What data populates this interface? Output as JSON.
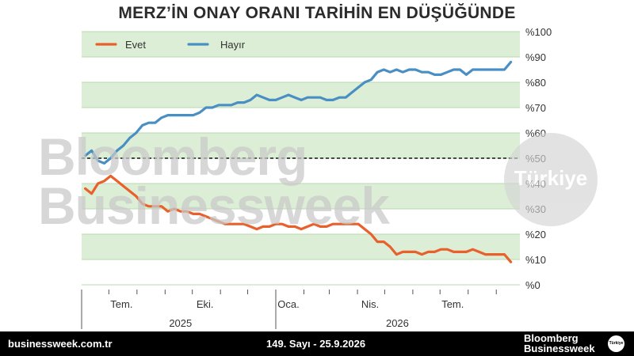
{
  "chart_data": {
    "type": "line",
    "title": "MERZ’İN ONAY ORANI TARİHİN EN DÜŞÜĞÜNDE",
    "ylim": [
      0,
      100
    ],
    "y_ticks": [
      "%0",
      "%10",
      "%20",
      "%30",
      "%40",
      "%50",
      "%60",
      "%70",
      "%80",
      "%90",
      "%100"
    ],
    "x_tick_labels": [
      "Tem.",
      "Eki.",
      "Oca.",
      "Nis.",
      "Tem."
    ],
    "x_years": [
      "2025",
      "2026"
    ],
    "reference_line": 50,
    "legend_position": "top-left",
    "grid": "alternating horizontal bands",
    "series": [
      {
        "name": "Evet",
        "color": "#e8602c",
        "points": [
          [
            "2025-06-05",
            38
          ],
          [
            "2025-06-12",
            36
          ],
          [
            "2025-06-19",
            40
          ],
          [
            "2025-06-26",
            41
          ],
          [
            "2025-07-03",
            43
          ],
          [
            "2025-07-10",
            41
          ],
          [
            "2025-07-17",
            39
          ],
          [
            "2025-07-24",
            37
          ],
          [
            "2025-07-31",
            35
          ],
          [
            "2025-08-07",
            32
          ],
          [
            "2025-08-14",
            31
          ],
          [
            "2025-08-21",
            31
          ],
          [
            "2025-08-28",
            31
          ],
          [
            "2025-09-04",
            29
          ],
          [
            "2025-09-11",
            30
          ],
          [
            "2025-09-18",
            29
          ],
          [
            "2025-09-25",
            29
          ],
          [
            "2025-10-02",
            28
          ],
          [
            "2025-10-09",
            28
          ],
          [
            "2025-10-16",
            27
          ],
          [
            "2025-10-23",
            26
          ],
          [
            "2025-10-30",
            25
          ],
          [
            "2025-11-06",
            24
          ],
          [
            "2025-11-13",
            24
          ],
          [
            "2025-11-20",
            24
          ],
          [
            "2025-11-27",
            24
          ],
          [
            "2025-12-04",
            23
          ],
          [
            "2025-12-11",
            22
          ],
          [
            "2025-12-18",
            23
          ],
          [
            "2025-12-25",
            23
          ],
          [
            "2026-01-01",
            24
          ],
          [
            "2026-01-08",
            24
          ],
          [
            "2026-01-15",
            23
          ],
          [
            "2026-01-22",
            23
          ],
          [
            "2026-01-29",
            22
          ],
          [
            "2026-02-05",
            23
          ],
          [
            "2026-02-12",
            24
          ],
          [
            "2026-02-19",
            23
          ],
          [
            "2026-02-26",
            23
          ],
          [
            "2026-03-05",
            24
          ],
          [
            "2026-03-12",
            24
          ],
          [
            "2026-03-19",
            24
          ],
          [
            "2026-03-26",
            24
          ],
          [
            "2026-04-02",
            24
          ],
          [
            "2026-04-09",
            22
          ],
          [
            "2026-04-16",
            20
          ],
          [
            "2026-04-23",
            17
          ],
          [
            "2026-04-30",
            17
          ],
          [
            "2026-05-07",
            15
          ],
          [
            "2026-05-14",
            12
          ],
          [
            "2026-05-21",
            13
          ],
          [
            "2026-05-28",
            13
          ],
          [
            "2026-06-04",
            13
          ],
          [
            "2026-06-11",
            12
          ],
          [
            "2026-06-18",
            13
          ],
          [
            "2026-06-25",
            13
          ],
          [
            "2026-07-02",
            14
          ],
          [
            "2026-07-09",
            14
          ],
          [
            "2026-07-16",
            13
          ],
          [
            "2026-07-23",
            13
          ],
          [
            "2026-07-30",
            13
          ],
          [
            "2026-08-06",
            14
          ],
          [
            "2026-08-13",
            13
          ],
          [
            "2026-08-20",
            12
          ],
          [
            "2026-08-27",
            12
          ],
          [
            "2026-09-03",
            12
          ],
          [
            "2026-09-10",
            12
          ],
          [
            "2026-09-17",
            9
          ]
        ]
      },
      {
        "name": "Hayır",
        "color": "#4a8fc4",
        "points": [
          [
            "2025-06-05",
            51
          ],
          [
            "2025-06-12",
            53
          ],
          [
            "2025-06-19",
            49
          ],
          [
            "2025-06-26",
            48
          ],
          [
            "2025-07-03",
            50
          ],
          [
            "2025-07-10",
            53
          ],
          [
            "2025-07-17",
            55
          ],
          [
            "2025-07-24",
            58
          ],
          [
            "2025-07-31",
            60
          ],
          [
            "2025-08-07",
            63
          ],
          [
            "2025-08-14",
            64
          ],
          [
            "2025-08-21",
            64
          ],
          [
            "2025-08-28",
            66
          ],
          [
            "2025-09-04",
            67
          ],
          [
            "2025-09-11",
            67
          ],
          [
            "2025-09-18",
            67
          ],
          [
            "2025-09-25",
            67
          ],
          [
            "2025-10-02",
            67
          ],
          [
            "2025-10-09",
            68
          ],
          [
            "2025-10-16",
            70
          ],
          [
            "2025-10-23",
            70
          ],
          [
            "2025-10-30",
            71
          ],
          [
            "2025-11-06",
            71
          ],
          [
            "2025-11-13",
            71
          ],
          [
            "2025-11-20",
            72
          ],
          [
            "2025-11-27",
            72
          ],
          [
            "2025-12-04",
            73
          ],
          [
            "2025-12-11",
            75
          ],
          [
            "2025-12-18",
            74
          ],
          [
            "2025-12-25",
            73
          ],
          [
            "2026-01-01",
            73
          ],
          [
            "2026-01-08",
            74
          ],
          [
            "2026-01-15",
            75
          ],
          [
            "2026-01-22",
            74
          ],
          [
            "2026-01-29",
            73
          ],
          [
            "2026-02-05",
            74
          ],
          [
            "2026-02-12",
            74
          ],
          [
            "2026-02-19",
            74
          ],
          [
            "2026-02-26",
            73
          ],
          [
            "2026-03-05",
            73
          ],
          [
            "2026-03-12",
            74
          ],
          [
            "2026-03-19",
            74
          ],
          [
            "2026-03-26",
            76
          ],
          [
            "2026-04-02",
            78
          ],
          [
            "2026-04-09",
            80
          ],
          [
            "2026-04-16",
            81
          ],
          [
            "2026-04-23",
            84
          ],
          [
            "2026-04-30",
            85
          ],
          [
            "2026-05-07",
            84
          ],
          [
            "2026-05-14",
            85
          ],
          [
            "2026-05-21",
            84
          ],
          [
            "2026-05-28",
            85
          ],
          [
            "2026-06-04",
            85
          ],
          [
            "2026-06-11",
            84
          ],
          [
            "2026-06-18",
            84
          ],
          [
            "2026-06-25",
            83
          ],
          [
            "2026-07-02",
            83
          ],
          [
            "2026-07-09",
            84
          ],
          [
            "2026-07-16",
            85
          ],
          [
            "2026-07-23",
            85
          ],
          [
            "2026-07-30",
            83
          ],
          [
            "2026-08-06",
            85
          ],
          [
            "2026-08-13",
            85
          ],
          [
            "2026-08-20",
            85
          ],
          [
            "2026-08-27",
            85
          ],
          [
            "2026-09-03",
            85
          ],
          [
            "2026-09-10",
            85
          ],
          [
            "2026-09-17",
            88
          ]
        ]
      }
    ]
  },
  "watermark": {
    "line1": "Bloomberg",
    "line2": "Businessweek",
    "badge": "Türkiye"
  },
  "footer": {
    "site": "businessweek.com.tr",
    "issue": "149. Sayı - 25.9.2026",
    "brand_line1": "Bloomberg",
    "brand_line2": "Businessweek",
    "badge": "Türkiye"
  }
}
